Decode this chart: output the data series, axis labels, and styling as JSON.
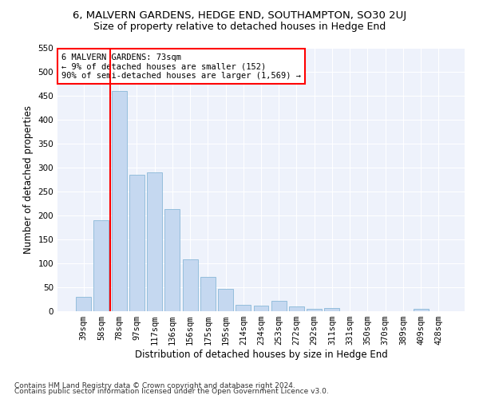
{
  "title": "6, MALVERN GARDENS, HEDGE END, SOUTHAMPTON, SO30 2UJ",
  "subtitle": "Size of property relative to detached houses in Hedge End",
  "xlabel": "Distribution of detached houses by size in Hedge End",
  "ylabel": "Number of detached properties",
  "categories": [
    "39sqm",
    "58sqm",
    "78sqm",
    "97sqm",
    "117sqm",
    "136sqm",
    "156sqm",
    "175sqm",
    "195sqm",
    "214sqm",
    "234sqm",
    "253sqm",
    "272sqm",
    "292sqm",
    "311sqm",
    "331sqm",
    "350sqm",
    "370sqm",
    "389sqm",
    "409sqm",
    "428sqm"
  ],
  "values": [
    30,
    190,
    460,
    285,
    290,
    213,
    108,
    72,
    46,
    13,
    12,
    21,
    10,
    5,
    6,
    0,
    0,
    0,
    0,
    5,
    0
  ],
  "bar_color": "#c5d8f0",
  "bar_edge_color": "#8ab8d8",
  "vline_color": "red",
  "annotation_text": "6 MALVERN GARDENS: 73sqm\n← 9% of detached houses are smaller (152)\n90% of semi-detached houses are larger (1,569) →",
  "annotation_box_color": "white",
  "annotation_box_edge": "red",
  "ylim": [
    0,
    550
  ],
  "yticks": [
    0,
    50,
    100,
    150,
    200,
    250,
    300,
    350,
    400,
    450,
    500,
    550
  ],
  "footer1": "Contains HM Land Registry data © Crown copyright and database right 2024.",
  "footer2": "Contains public sector information licensed under the Open Government Licence v3.0.",
  "bg_color": "#eef2fb",
  "grid_color": "#ffffff",
  "title_fontsize": 9.5,
  "subtitle_fontsize": 9,
  "ylabel_fontsize": 8.5,
  "xlabel_fontsize": 8.5,
  "tick_fontsize": 7.5,
  "annot_fontsize": 7.5,
  "footer_fontsize": 6.5
}
